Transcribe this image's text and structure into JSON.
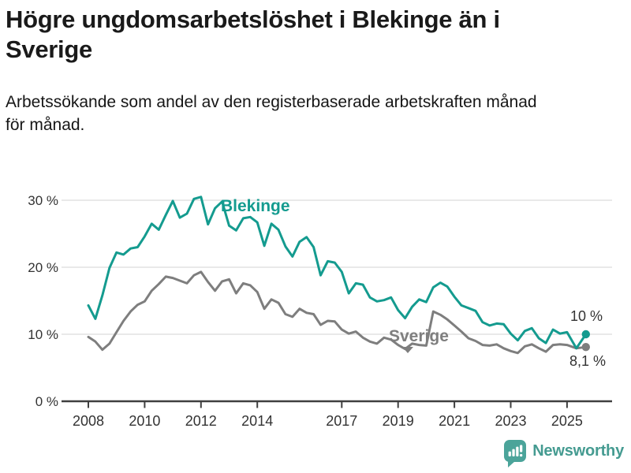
{
  "header": {
    "title": "Högre ungdomsarbetslöshet i Blekinge än i\nSverige",
    "subtitle": "Arbetssökande som andel av den registerbaserade arbetskraften månad\nför månad."
  },
  "chart_data": {
    "type": "line",
    "y_unit": "%",
    "grid": "horizontal-only",
    "legend": "inline-labels",
    "ylim": [
      0,
      32.5
    ],
    "xlim": [
      2007.0,
      2026.6
    ],
    "y_ticks": [
      {
        "value": 0,
        "label": "0 %"
      },
      {
        "value": 10,
        "label": "10 %"
      },
      {
        "value": 20,
        "label": "20 %"
      },
      {
        "value": 30,
        "label": "30 %"
      }
    ],
    "x_ticks": [
      {
        "value": 2008,
        "label": "2008"
      },
      {
        "value": 2010,
        "label": "2010"
      },
      {
        "value": 2012,
        "label": "2012"
      },
      {
        "value": 2014,
        "label": "2014"
      },
      {
        "value": 2017,
        "label": "2017"
      },
      {
        "value": 2019,
        "label": "2019"
      },
      {
        "value": 2021,
        "label": "2021"
      },
      {
        "value": 2023,
        "label": "2023"
      },
      {
        "value": 2025,
        "label": "2025"
      }
    ],
    "x": [
      2008,
      2008.25,
      2008.5,
      2008.75,
      2009,
      2009.25,
      2009.5,
      2009.75,
      2010,
      2010.25,
      2010.5,
      2010.75,
      2011,
      2011.25,
      2011.5,
      2011.75,
      2012,
      2012.25,
      2012.5,
      2012.75,
      2013,
      2013.25,
      2013.5,
      2013.75,
      2014,
      2014.25,
      2014.5,
      2014.75,
      2015,
      2015.25,
      2015.5,
      2015.75,
      2016,
      2016.25,
      2016.5,
      2016.75,
      2017,
      2017.25,
      2017.5,
      2017.75,
      2018,
      2018.25,
      2018.5,
      2018.75,
      2019,
      2019.25,
      2019.5,
      2019.75,
      2020,
      2020.25,
      2020.5,
      2020.75,
      2021,
      2021.25,
      2021.5,
      2021.75,
      2022,
      2022.25,
      2022.5,
      2022.75,
      2023,
      2023.25,
      2023.5,
      2023.75,
      2024,
      2024.25,
      2024.5,
      2024.75,
      2025,
      2025.33,
      2025.67
    ],
    "series": [
      {
        "name": "Blekinge",
        "color": "#149b8f",
        "end_label": "10 %",
        "end_value": 10.0,
        "values": [
          14.3,
          12.3,
          15.8,
          19.9,
          22.2,
          21.9,
          22.8,
          23.0,
          24.6,
          26.5,
          25.6,
          27.8,
          29.9,
          27.4,
          28.0,
          30.2,
          30.5,
          26.4,
          28.8,
          29.8,
          26.2,
          25.5,
          27.3,
          27.5,
          26.7,
          23.2,
          26.5,
          25.6,
          23.1,
          21.6,
          23.8,
          24.5,
          23.0,
          18.8,
          20.9,
          20.7,
          19.3,
          16.1,
          17.6,
          17.4,
          15.5,
          14.9,
          15.1,
          15.5,
          13.6,
          12.4,
          14.1,
          15.2,
          14.8,
          17.0,
          17.7,
          17.1,
          15.6,
          14.3,
          13.9,
          13.5,
          11.8,
          11.3,
          11.6,
          11.5,
          10.1,
          9.1,
          10.5,
          10.9,
          9.4,
          8.7,
          10.7,
          10.1,
          10.3,
          7.9,
          10.0
        ]
      },
      {
        "name": "Sverige",
        "color": "#7e7e7e",
        "end_label": "8,1 %",
        "end_value": 8.1,
        "values": [
          9.6,
          8.9,
          7.7,
          8.6,
          10.3,
          12.0,
          13.4,
          14.4,
          14.9,
          16.5,
          17.5,
          18.6,
          18.4,
          18.0,
          17.6,
          18.8,
          19.3,
          17.8,
          16.5,
          17.9,
          18.2,
          16.1,
          17.6,
          17.3,
          16.3,
          13.8,
          15.2,
          14.7,
          13.0,
          12.6,
          13.8,
          13.2,
          13.0,
          11.4,
          12.0,
          11.9,
          10.7,
          10.1,
          10.4,
          9.5,
          8.9,
          8.6,
          9.5,
          9.2,
          8.4,
          7.8,
          8.6,
          8.4,
          8.3,
          13.4,
          12.9,
          12.2,
          11.3,
          10.4,
          9.4,
          9.0,
          8.4,
          8.3,
          8.5,
          7.9,
          7.5,
          7.2,
          8.2,
          8.5,
          7.9,
          7.4,
          8.4,
          8.5,
          8.4,
          7.9,
          8.1
        ]
      }
    ]
  },
  "footer": {
    "brand": "Newsworthy",
    "icon": "bar-chart-speech-bubble-icon",
    "color": "#4ba49a",
    "text_color": "#459b91"
  }
}
